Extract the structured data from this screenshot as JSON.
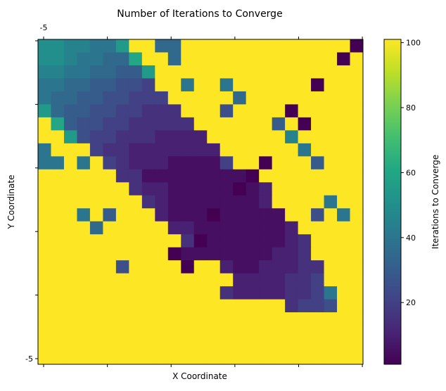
{
  "chart_data": {
    "type": "heatmap",
    "title": "Number of Iterations to Converge",
    "xlabel": "X Coordinate",
    "ylabel": "Y Coordinate",
    "colorbar_label": "Iterations to Converge",
    "colorbar_ticks": [
      20,
      40,
      60,
      80,
      100
    ],
    "colorbar_range": [
      1,
      101
    ],
    "x_tick_labels": [
      "-5",
      "",
      "",
      "",
      "",
      ""
    ],
    "y_tick_labels": [
      "",
      "",
      "",
      "",
      "",
      "-5"
    ],
    "grid": false,
    "colormap": "viridis",
    "values": [
      [
        50,
        50,
        45,
        45,
        40,
        40,
        55,
        101,
        101,
        35,
        35,
        101,
        101,
        101,
        101,
        101,
        101,
        101,
        101,
        101,
        101,
        101,
        101,
        101,
        1
      ],
      [
        50,
        50,
        45,
        40,
        40,
        35,
        35,
        60,
        101,
        101,
        35,
        101,
        101,
        101,
        101,
        101,
        101,
        101,
        101,
        101,
        101,
        101,
        101,
        1,
        101
      ],
      [
        45,
        45,
        40,
        40,
        35,
        35,
        30,
        30,
        55,
        101,
        101,
        101,
        101,
        101,
        101,
        101,
        101,
        101,
        101,
        101,
        101,
        101,
        101,
        101,
        101
      ],
      [
        40,
        40,
        35,
        35,
        30,
        30,
        25,
        25,
        20,
        101,
        101,
        40,
        101,
        101,
        40,
        101,
        101,
        101,
        101,
        101,
        101,
        1,
        101,
        101,
        101
      ],
      [
        40,
        35,
        35,
        30,
        30,
        25,
        25,
        20,
        20,
        20,
        101,
        101,
        101,
        101,
        101,
        35,
        101,
        101,
        101,
        101,
        101,
        101,
        101,
        101,
        101
      ],
      [
        55,
        35,
        30,
        30,
        25,
        25,
        20,
        20,
        15,
        15,
        15,
        101,
        101,
        101,
        25,
        101,
        101,
        101,
        101,
        1,
        101,
        101,
        101,
        101,
        101
      ],
      [
        101,
        60,
        30,
        25,
        25,
        20,
        20,
        15,
        15,
        15,
        15,
        15,
        101,
        101,
        101,
        101,
        101,
        101,
        30,
        101,
        1,
        101,
        101,
        101,
        101
      ],
      [
        101,
        101,
        55,
        25,
        20,
        20,
        15,
        15,
        15,
        10,
        10,
        10,
        10,
        101,
        101,
        101,
        101,
        101,
        101,
        45,
        101,
        101,
        101,
        101,
        101
      ],
      [
        40,
        101,
        101,
        101,
        20,
        15,
        15,
        10,
        10,
        10,
        10,
        10,
        10,
        10,
        101,
        101,
        101,
        101,
        101,
        101,
        40,
        101,
        101,
        101,
        101
      ],
      [
        40,
        40,
        101,
        40,
        101,
        20,
        15,
        10,
        10,
        10,
        5,
        5,
        5,
        5,
        20,
        101,
        101,
        1,
        101,
        101,
        101,
        30,
        101,
        101,
        101
      ],
      [
        101,
        101,
        101,
        101,
        101,
        101,
        15,
        15,
        5,
        5,
        5,
        5,
        5,
        5,
        5,
        5,
        1,
        101,
        101,
        101,
        101,
        101,
        101,
        101,
        101
      ],
      [
        101,
        101,
        101,
        101,
        101,
        101,
        101,
        15,
        10,
        10,
        5,
        5,
        5,
        5,
        5,
        1,
        5,
        10,
        101,
        101,
        101,
        101,
        101,
        101,
        101
      ],
      [
        101,
        101,
        101,
        101,
        101,
        101,
        101,
        101,
        15,
        10,
        5,
        5,
        5,
        5,
        5,
        5,
        5,
        10,
        101,
        101,
        101,
        101,
        40,
        101,
        101
      ],
      [
        101,
        101,
        101,
        40,
        101,
        30,
        101,
        101,
        101,
        10,
        5,
        5,
        5,
        1,
        5,
        5,
        5,
        5,
        5,
        101,
        101,
        25,
        101,
        40,
        101
      ],
      [
        101,
        101,
        101,
        101,
        35,
        101,
        101,
        101,
        101,
        101,
        10,
        10,
        5,
        5,
        5,
        5,
        5,
        5,
        5,
        10,
        101,
        101,
        101,
        101,
        101
      ],
      [
        101,
        101,
        101,
        101,
        101,
        101,
        101,
        101,
        101,
        101,
        101,
        15,
        1,
        5,
        5,
        5,
        5,
        5,
        5,
        10,
        15,
        101,
        101,
        101,
        101
      ],
      [
        101,
        101,
        101,
        101,
        101,
        101,
        101,
        101,
        101,
        101,
        1,
        5,
        5,
        5,
        5,
        5,
        5,
        5,
        10,
        10,
        15,
        101,
        101,
        101,
        101
      ],
      [
        101,
        101,
        101,
        101,
        101,
        101,
        25,
        101,
        101,
        101,
        101,
        1,
        101,
        101,
        10,
        5,
        5,
        10,
        10,
        10,
        15,
        15,
        101,
        101,
        101
      ],
      [
        101,
        101,
        101,
        101,
        101,
        101,
        101,
        101,
        101,
        101,
        101,
        101,
        101,
        101,
        101,
        10,
        10,
        10,
        10,
        15,
        15,
        20,
        101,
        101,
        101
      ],
      [
        101,
        101,
        101,
        101,
        101,
        101,
        101,
        101,
        101,
        101,
        101,
        101,
        101,
        101,
        15,
        10,
        10,
        10,
        10,
        15,
        15,
        20,
        40,
        101,
        101
      ],
      [
        101,
        101,
        101,
        101,
        101,
        101,
        101,
        101,
        101,
        101,
        101,
        101,
        101,
        101,
        101,
        101,
        101,
        101,
        101,
        15,
        20,
        20,
        25,
        101,
        101
      ],
      [
        101,
        101,
        101,
        101,
        101,
        101,
        101,
        101,
        101,
        101,
        101,
        101,
        101,
        101,
        101,
        101,
        101,
        101,
        101,
        101,
        101,
        101,
        101,
        101,
        101
      ],
      [
        101,
        101,
        101,
        101,
        101,
        101,
        101,
        101,
        101,
        101,
        101,
        101,
        101,
        101,
        101,
        101,
        101,
        101,
        101,
        101,
        101,
        101,
        101,
        101,
        101
      ],
      [
        101,
        101,
        101,
        101,
        101,
        101,
        101,
        101,
        101,
        101,
        101,
        101,
        101,
        101,
        101,
        101,
        101,
        101,
        101,
        101,
        101,
        101,
        101,
        101,
        101
      ],
      [
        101,
        101,
        101,
        101,
        101,
        101,
        101,
        101,
        101,
        101,
        101,
        101,
        101,
        101,
        101,
        101,
        101,
        101,
        101,
        101,
        101,
        101,
        101,
        101,
        101
      ]
    ]
  }
}
